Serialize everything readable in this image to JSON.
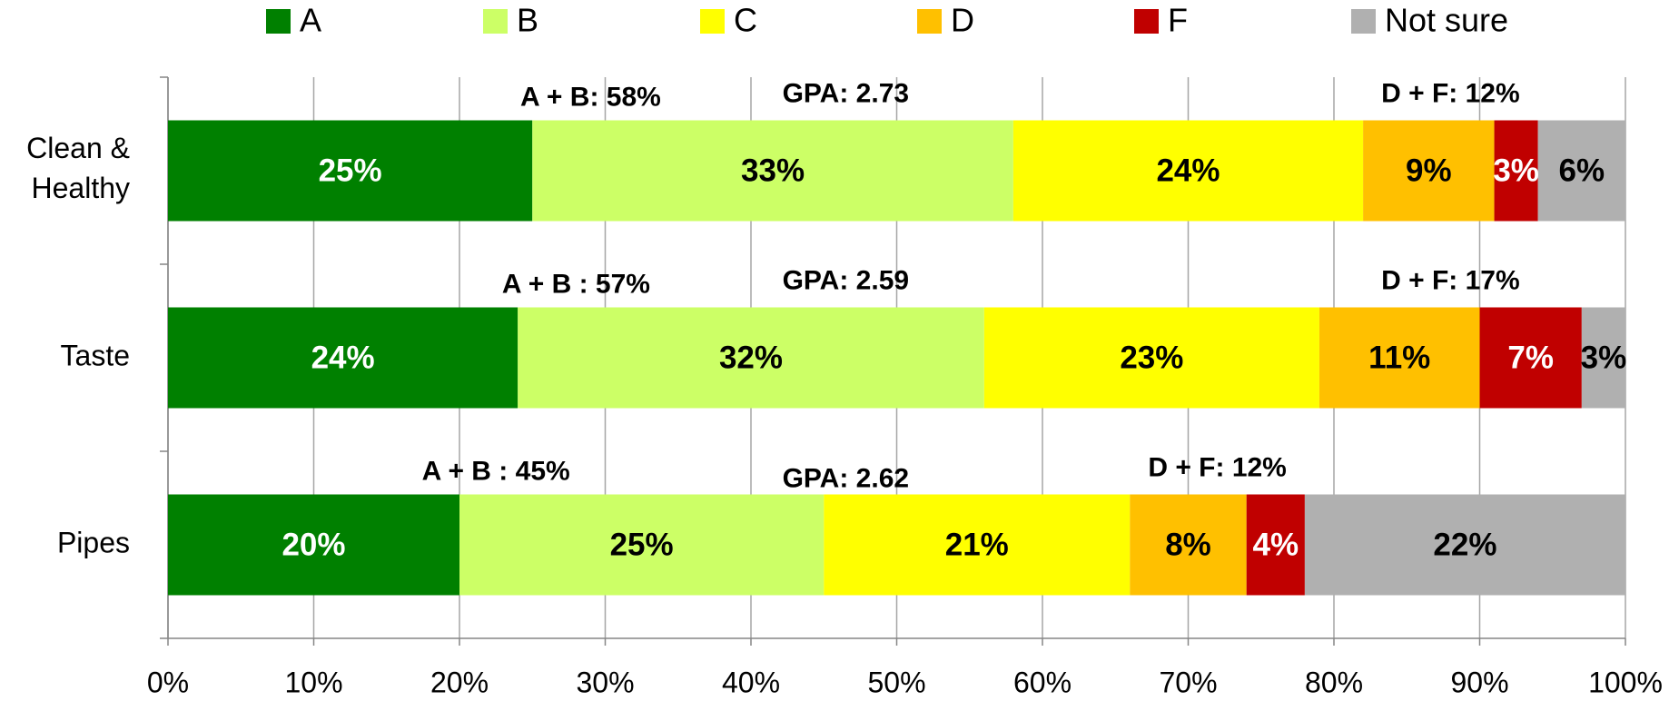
{
  "chart_data": {
    "type": "stacked-barh",
    "categories": [
      "Clean & Healthy",
      "Taste",
      "Pipes"
    ],
    "series": [
      {
        "name": "A",
        "color": "#008000",
        "values": [
          25,
          24,
          20
        ],
        "value_labels": [
          "25%",
          "24%",
          "20%"
        ]
      },
      {
        "name": "B",
        "color": "#ccff66",
        "values": [
          33,
          32,
          25
        ],
        "value_labels": [
          "33%",
          "32%",
          "25%"
        ]
      },
      {
        "name": "C",
        "color": "#ffff00",
        "values": [
          24,
          23,
          21
        ],
        "value_labels": [
          "24%",
          "23%",
          "21%"
        ]
      },
      {
        "name": "D",
        "color": "#ffc000",
        "values": [
          9,
          11,
          8
        ],
        "value_labels": [
          "9%",
          "11%",
          "8%"
        ]
      },
      {
        "name": "F",
        "color": "#c00000",
        "values": [
          3,
          7,
          4
        ],
        "value_labels": [
          "3%",
          "7%",
          "4%"
        ]
      },
      {
        "name": "Not sure",
        "color": "#b0b0b0",
        "values": [
          6,
          3,
          22
        ],
        "value_labels": [
          "6%",
          "3%",
          "22%"
        ]
      }
    ],
    "annotations": [
      {
        "ab": "A + B: 58%",
        "gpa": "GPA: 2.73",
        "df": "D + F: 12%"
      },
      {
        "ab": "A + B : 57%",
        "gpa": "GPA: 2.59",
        "df": "D + F: 17%"
      },
      {
        "ab": "A + B : 45%",
        "gpa": "GPA: 2.62",
        "df": "D + F: 12%"
      }
    ],
    "xlim": [
      0,
      100
    ],
    "xticks": [
      {
        "value": 0,
        "label": "0%"
      },
      {
        "value": 10,
        "label": "10%"
      },
      {
        "value": 20,
        "label": "20%"
      },
      {
        "value": 30,
        "label": "30%"
      },
      {
        "value": 40,
        "label": "40%"
      },
      {
        "value": 50,
        "label": "50%"
      },
      {
        "value": 60,
        "label": "60%"
      },
      {
        "value": 70,
        "label": "70%"
      },
      {
        "value": 80,
        "label": "80%"
      },
      {
        "value": 90,
        "label": "90%"
      },
      {
        "value": 100,
        "label": "100%"
      }
    ],
    "grid": true,
    "legend": "top"
  }
}
